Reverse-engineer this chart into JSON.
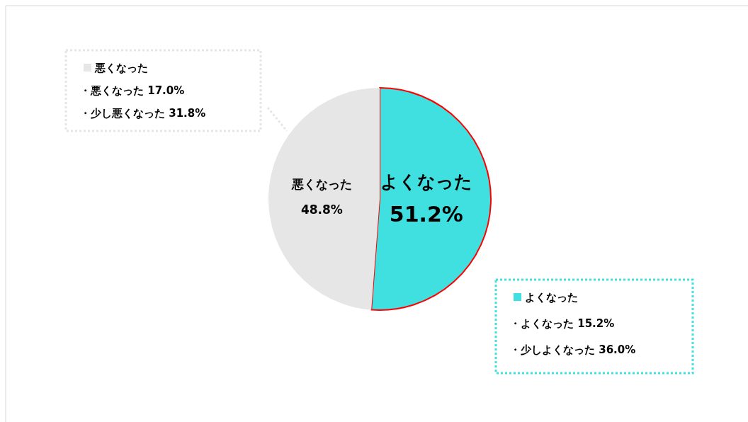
{
  "chart_data": {
    "type": "pie",
    "categories": [
      "よくなった",
      "悪くなった"
    ],
    "values": [
      51.2,
      48.8
    ],
    "colors": [
      "#40e0e0",
      "#e6e6e6"
    ],
    "value_labels": [
      "51.2%",
      "48.8%"
    ],
    "annotations": [
      "悪くなった",
      "・悪くなった 17.0%",
      "・少し悪くなった 31.8%",
      "よくなった",
      "・よくなった 15.2%",
      "・少しよくなった 36.0%"
    ]
  }
}
